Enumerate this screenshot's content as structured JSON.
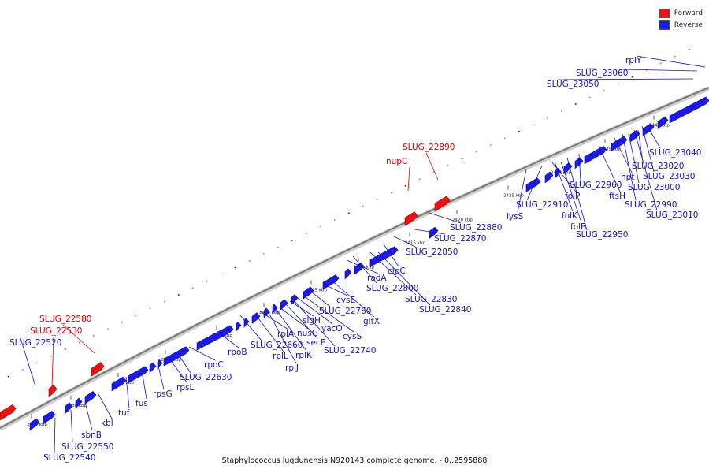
{
  "legend": {
    "forward_label": "Forward",
    "reverse_label": "Reverse",
    "forward_color": "#ee1111",
    "reverse_color": "#1a1aee"
  },
  "caption": "Staphylococcus lugdunensis N920143 complete genome. - 0..2595888",
  "kbp_ticks": [
    "2375 kbp",
    "2380 kbp",
    "2385 kbp",
    "2390 kbp",
    "2395 kbp",
    "2400 kbp",
    "2405 kbp",
    "2410 kbp",
    "2415 kbp",
    "2420 kbp",
    "2425 kbp",
    "2430 kbp",
    "2435 kbp",
    "2440 kbp"
  ],
  "forward_genes": [
    "SLUG_22580",
    "SLUG_22530",
    "SLUG_22890",
    "nupC"
  ],
  "reverse_genes": [
    "SLUG_22520",
    "SLUG_22540",
    "SLUG_22550",
    "sbnB",
    "kbl",
    "tuf",
    "fus",
    "rpsG",
    "rpsL",
    "SLUG_22630",
    "rpoC",
    "rpoB",
    "SLUG_22660",
    "rplL",
    "rplA",
    "rplJ",
    "rplK",
    "nusG",
    "secE",
    "sigH",
    "SLUG_22740",
    "yacO",
    "cysS",
    "SLUG_22760",
    "cysE",
    "gltX",
    "radA",
    "SLUG_22800",
    "SLUG_22830",
    "SLUG_22840",
    "clpC",
    "SLUG_22850",
    "SLUG_22870",
    "SLUG_22880",
    "lysS",
    "SLUG_22910",
    "folP",
    "folK",
    "folB",
    "SLUG_22950",
    "SLUG_22960",
    "ftsH",
    "hpt",
    "SLUG_22990",
    "SLUG_23000",
    "SLUG_23010",
    "SLUG_23020",
    "SLUG_23030",
    "SLUG_23040",
    "SLUG_23050",
    "SLUG_23060",
    "rplY"
  ]
}
